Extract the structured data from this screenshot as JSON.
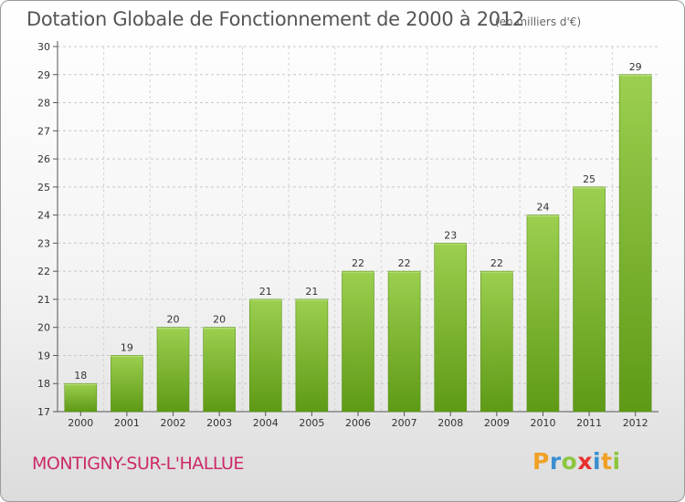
{
  "title": "Dotation Globale de Fonctionnement de 2000 à 2012",
  "unit": "(en milliers d'€)",
  "commune": "MONTIGNY-SUR-L'HALLUE",
  "logo": {
    "letters": [
      "P",
      "r",
      "o",
      "x",
      "i",
      "t",
      "i"
    ],
    "colors": [
      "#f0a024",
      "#3a8fd0",
      "#8cc63f",
      "#e8312f",
      "#3a8fd0",
      "#f0a024",
      "#8cc63f"
    ]
  },
  "colors": {
    "bar_top": "#9ccf4f",
    "bar_bottom": "#5e9a16",
    "title": "#555555",
    "commune": "#cc2a6a"
  },
  "chart_data": {
    "type": "bar",
    "title": "Dotation Globale de Fonctionnement de 2000 à 2012",
    "subtitle": "(en milliers d'€)",
    "categories": [
      "2000",
      "2001",
      "2002",
      "2003",
      "2004",
      "2005",
      "2006",
      "2007",
      "2008",
      "2009",
      "2010",
      "2011",
      "2012"
    ],
    "values": [
      18,
      19,
      20,
      20,
      21,
      21,
      22,
      22,
      23,
      22,
      24,
      25,
      29
    ],
    "ylim": [
      17,
      30
    ],
    "yticks": [
      17,
      18,
      19,
      20,
      21,
      22,
      23,
      24,
      25,
      26,
      27,
      28,
      29,
      30
    ],
    "grid": true,
    "xlabel": "",
    "ylabel": ""
  }
}
